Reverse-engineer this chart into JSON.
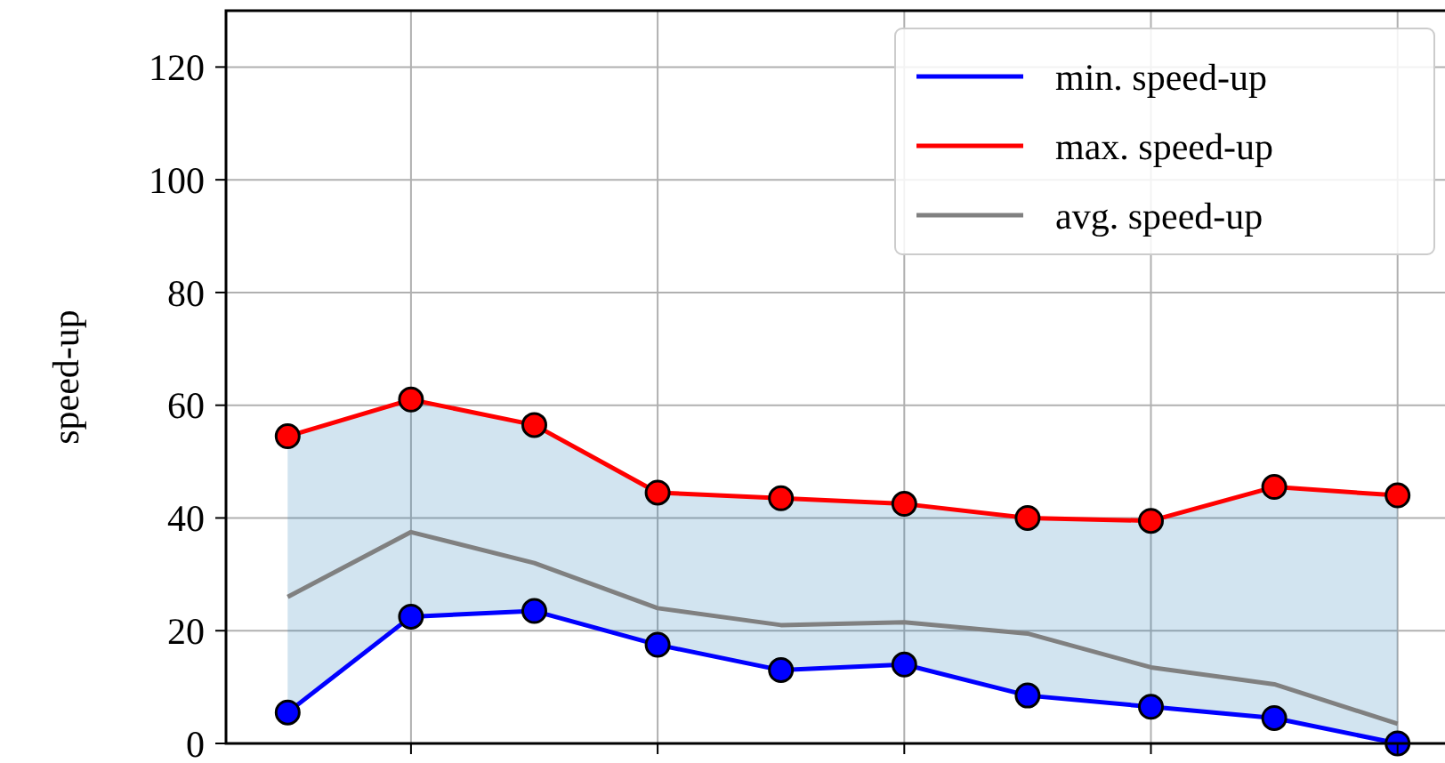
{
  "chart_data": {
    "type": "line",
    "ylabel": "speed-up",
    "categories": [
      null,
      null,
      null,
      null,
      null,
      null,
      null,
      null,
      null,
      null
    ],
    "ylim": [
      0,
      130
    ],
    "yticks": [
      0,
      20,
      40,
      60,
      80,
      100,
      120
    ],
    "tick_labels": "y",
    "grid": true,
    "legend": "top right",
    "series": [
      {
        "name": "min. speed-up",
        "color": "#0000ff",
        "marker": "circle",
        "values": [
          5.5,
          22.5,
          23.5,
          17.5,
          13,
          14,
          8.5,
          6.5,
          4.5,
          0
        ]
      },
      {
        "name": "max. speed-up",
        "color": "#ff0000",
        "marker": "circle",
        "values": [
          54.5,
          61,
          56.5,
          44.5,
          43.5,
          42.5,
          40,
          39.5,
          45.5,
          44
        ]
      },
      {
        "name": "avg. speed-up",
        "color": "#808080",
        "marker": "none",
        "values": [
          26,
          37.5,
          32,
          24,
          21,
          21.5,
          19.5,
          13.5,
          10.5,
          3.5
        ],
        "lower": [
          5.5,
          22.5,
          23.5,
          17.5,
          13,
          14,
          8.5,
          6.5,
          4.5,
          0
        ],
        "upper": [
          54.5,
          61,
          56.5,
          44.5,
          43.5,
          42.5,
          40,
          39.5,
          45.5,
          44
        ]
      }
    ]
  }
}
